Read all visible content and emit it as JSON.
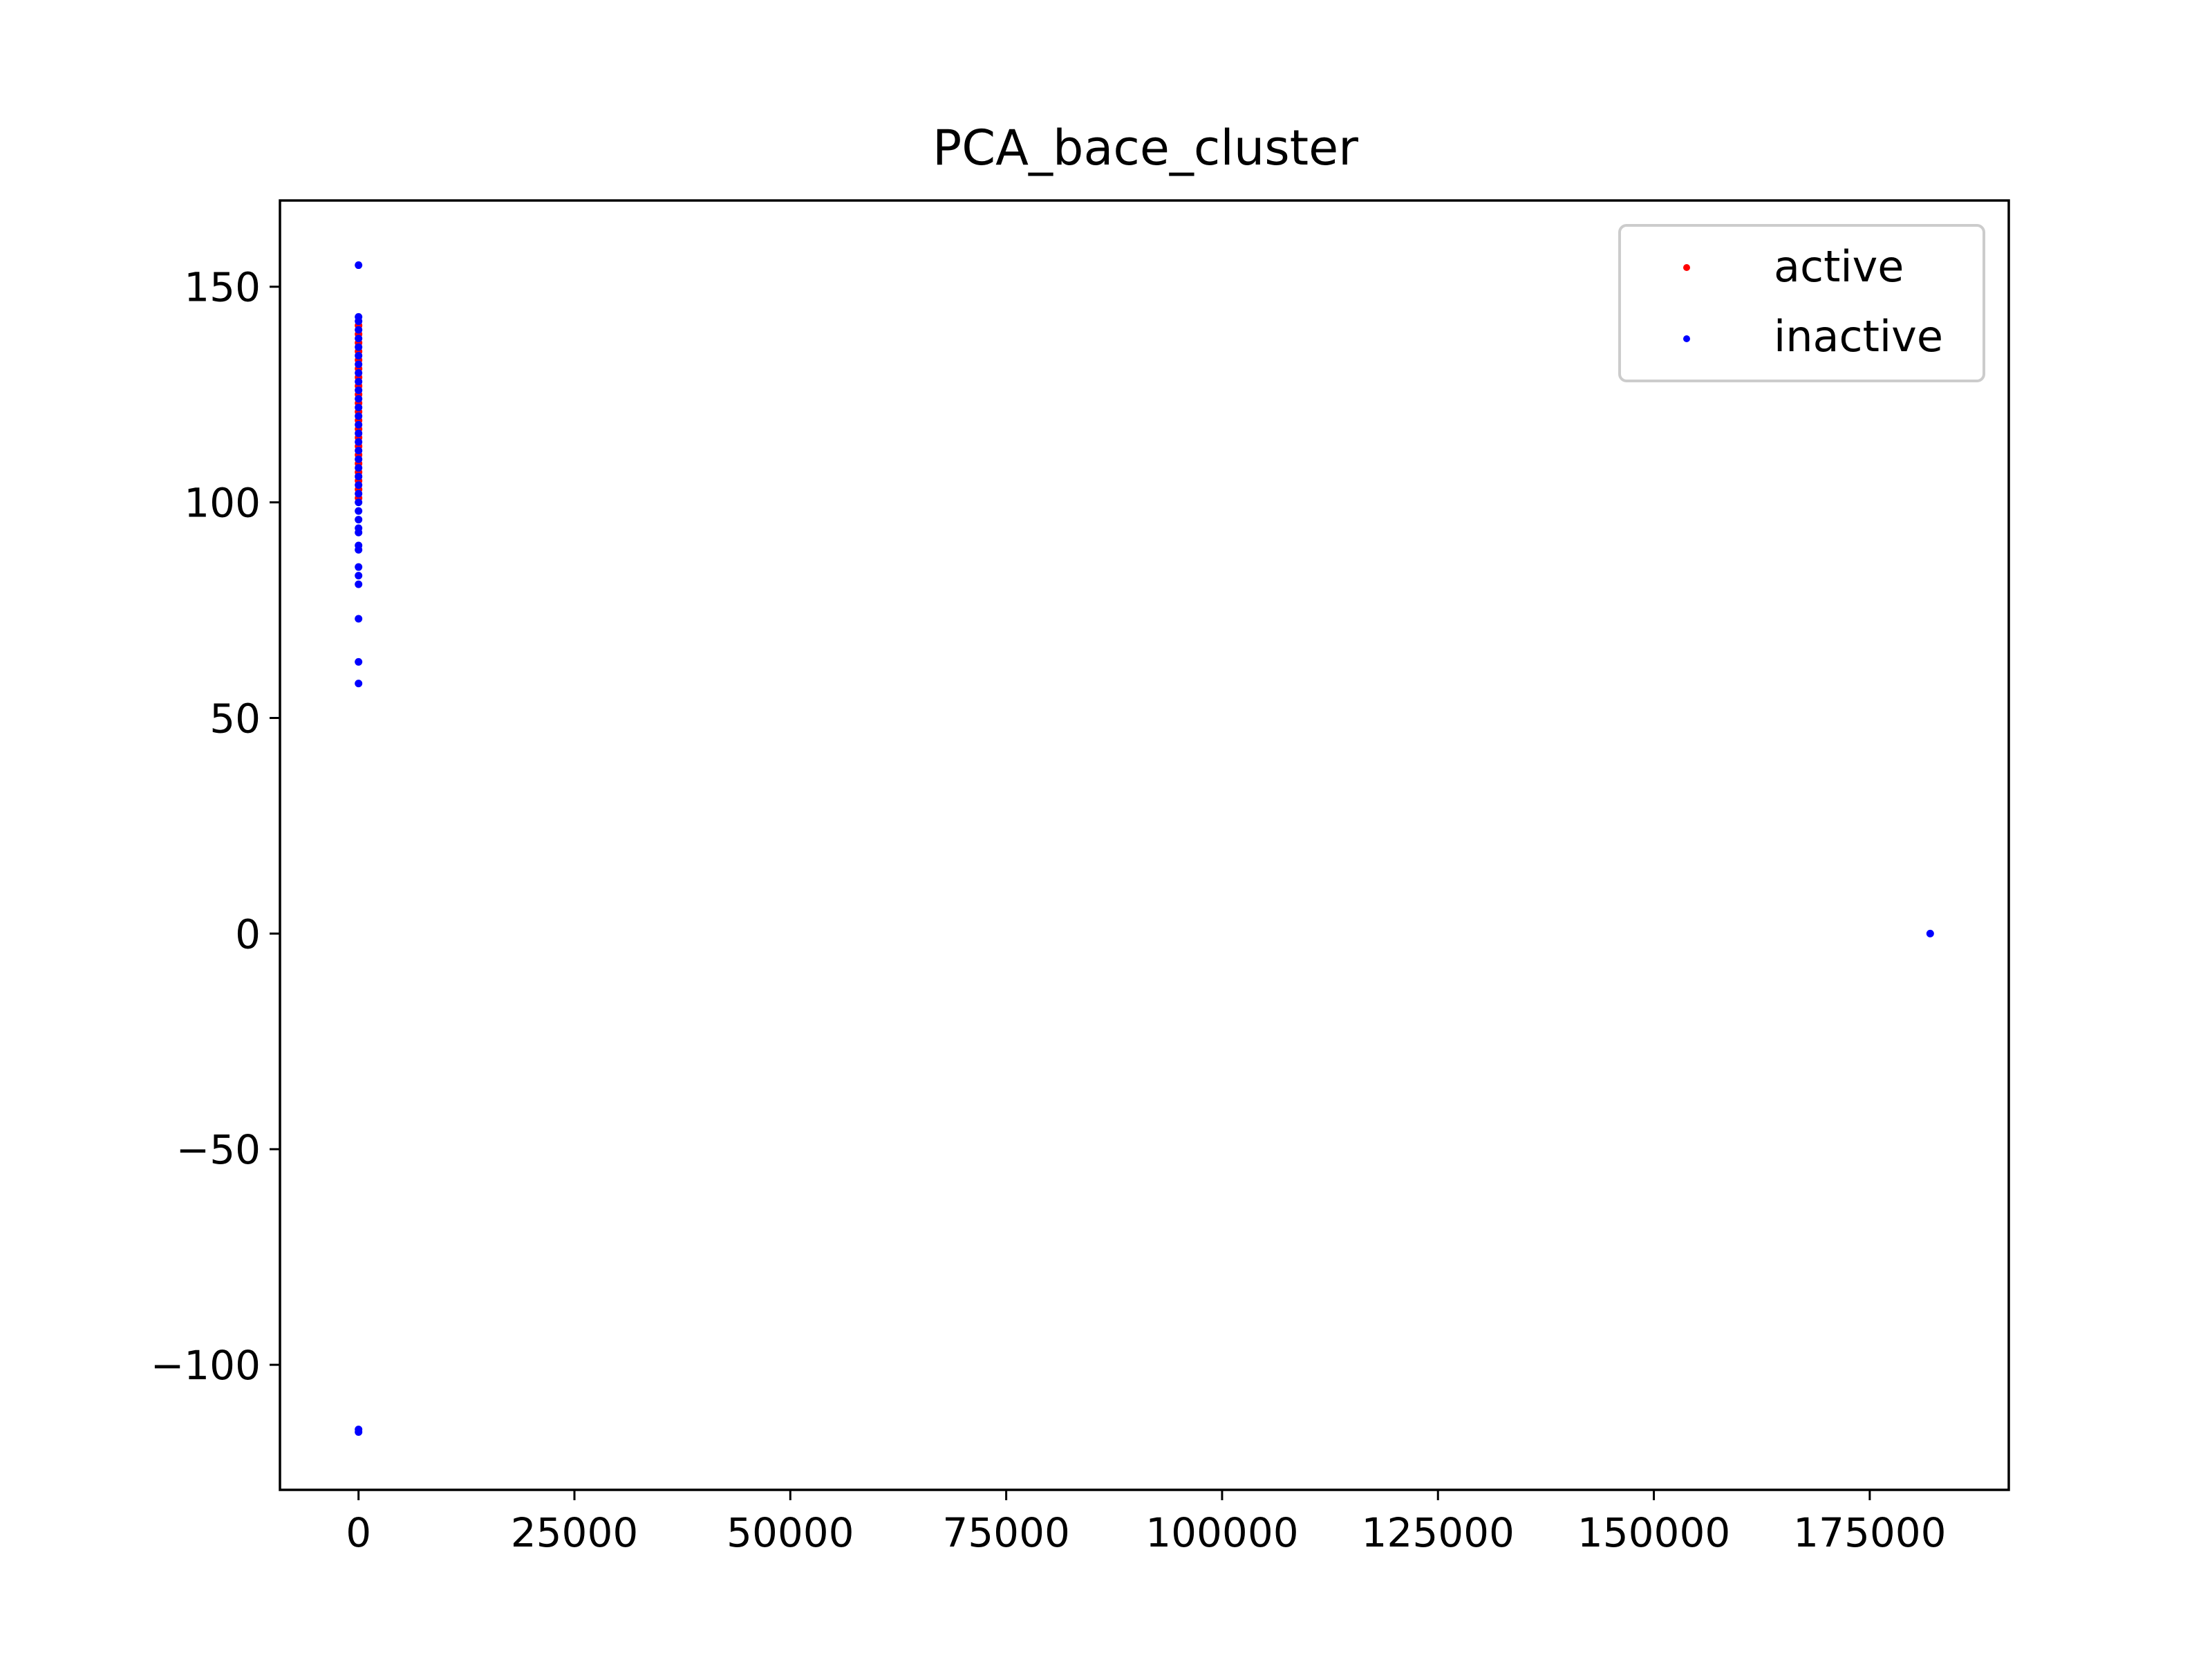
{
  "chart_data": {
    "type": "scatter",
    "title": "PCA_bace_cluster",
    "xlabel": "",
    "ylabel": "",
    "xlim": [
      -9100,
      191100
    ],
    "ylim": [
      -129,
      170
    ],
    "x_ticks": [
      0,
      25000,
      50000,
      75000,
      100000,
      125000,
      150000,
      175000
    ],
    "x_tick_labels": [
      "0",
      "25000",
      "50000",
      "75000",
      "100000",
      "125000",
      "150000",
      "175000"
    ],
    "y_ticks": [
      -100,
      -50,
      0,
      50,
      100,
      150
    ],
    "y_tick_labels": [
      "−100",
      "−50",
      "0",
      "50",
      "100",
      "150"
    ],
    "grid": false,
    "legend_position": "upper right",
    "series": [
      {
        "name": "active",
        "color": "#ff0000",
        "points": [
          [
            0,
            141
          ],
          [
            0,
            139
          ],
          [
            0,
            137
          ],
          [
            0,
            135
          ],
          [
            0,
            133
          ],
          [
            0,
            131
          ],
          [
            0,
            129
          ],
          [
            0,
            127
          ],
          [
            0,
            125
          ],
          [
            0,
            123
          ],
          [
            0,
            121
          ],
          [
            0,
            119
          ],
          [
            0,
            117
          ],
          [
            0,
            115
          ],
          [
            0,
            113
          ],
          [
            0,
            111
          ],
          [
            0,
            109
          ],
          [
            0,
            107
          ],
          [
            0,
            105
          ],
          [
            0,
            103
          ],
          [
            0,
            101
          ]
        ]
      },
      {
        "name": "inactive",
        "color": "#0000ff",
        "points": [
          [
            0,
            155
          ],
          [
            0,
            143
          ],
          [
            0,
            142
          ],
          [
            0,
            140
          ],
          [
            0,
            138
          ],
          [
            0,
            136
          ],
          [
            0,
            134
          ],
          [
            0,
            132
          ],
          [
            0,
            130
          ],
          [
            0,
            128
          ],
          [
            0,
            126
          ],
          [
            0,
            124
          ],
          [
            0,
            122
          ],
          [
            0,
            120
          ],
          [
            0,
            118
          ],
          [
            0,
            116
          ],
          [
            0,
            114
          ],
          [
            0,
            112
          ],
          [
            0,
            110
          ],
          [
            0,
            108
          ],
          [
            0,
            106
          ],
          [
            0,
            104
          ],
          [
            0,
            102
          ],
          [
            0,
            100
          ],
          [
            0,
            98
          ],
          [
            0,
            96
          ],
          [
            0,
            94
          ],
          [
            0,
            93
          ],
          [
            0,
            90
          ],
          [
            0,
            89
          ],
          [
            0,
            85
          ],
          [
            0,
            83
          ],
          [
            0,
            81
          ],
          [
            0,
            73
          ],
          [
            0,
            63
          ],
          [
            0,
            58
          ],
          [
            0,
            -115
          ],
          [
            0,
            -115.6
          ],
          [
            182000,
            0
          ]
        ]
      }
    ]
  }
}
